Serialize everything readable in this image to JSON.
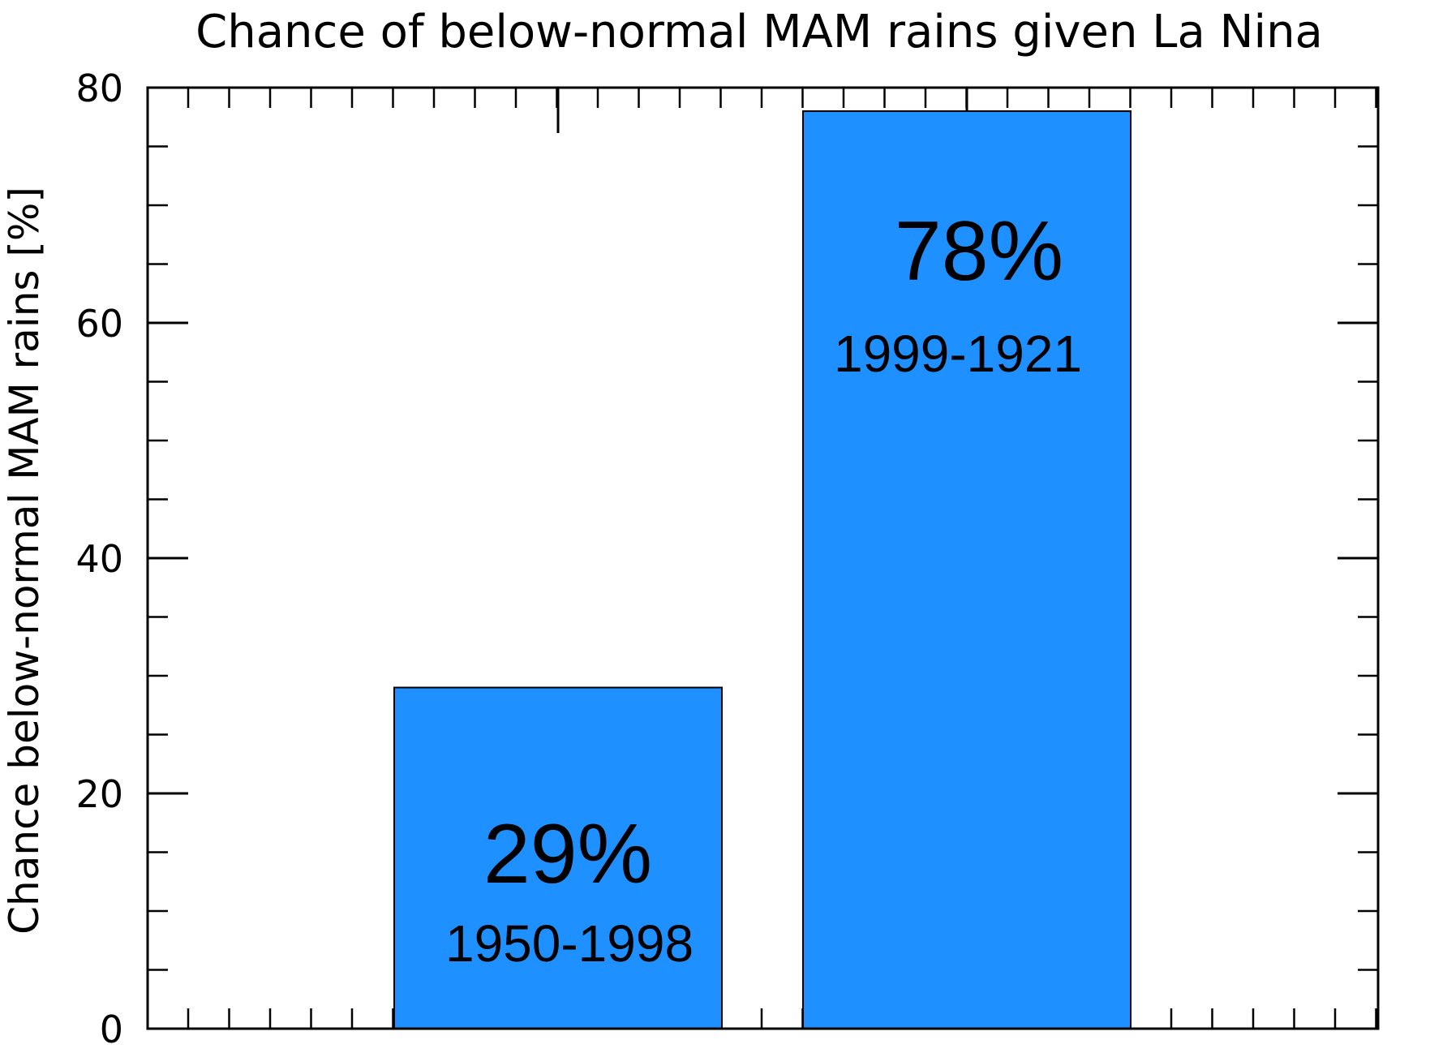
{
  "chart_data": {
    "type": "bar",
    "title": "Chance of below-normal MAM rains given La Nina",
    "xlabel": "",
    "ylabel": "Chance below-normal MAM rains [%]",
    "categories": [
      "1950-1998",
      "1999-1921"
    ],
    "values": [
      29,
      78
    ],
    "value_labels": [
      "29%",
      "78%"
    ],
    "ylim": [
      0,
      80
    ],
    "yticks": [
      0,
      20,
      40,
      60,
      80
    ],
    "ytick_labels": [
      "0",
      "20",
      "40",
      "60",
      "80"
    ],
    "bar_color": "#1E90FF",
    "grid": false,
    "legend": "none"
  }
}
